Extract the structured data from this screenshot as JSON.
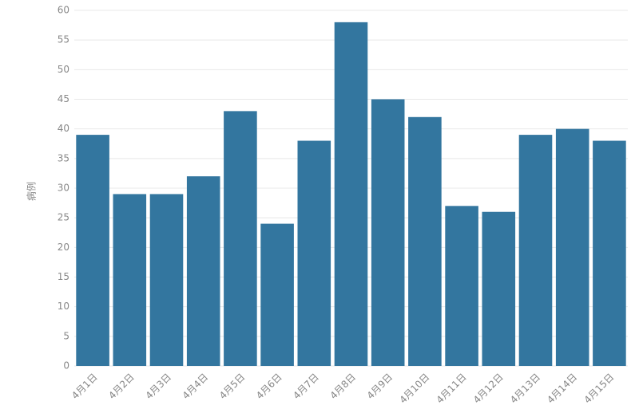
{
  "chart_data": {
    "type": "bar",
    "y_label": "病例",
    "categories": [
      "4月1日",
      "4月2日",
      "4月3日",
      "4月4日",
      "4月5日",
      "4月6日",
      "4月7日",
      "4月8日",
      "4月9日",
      "4月10日",
      "4月11日",
      "4月12日",
      "4月13日",
      "4月14日",
      "4月15日"
    ],
    "values": [
      39,
      29,
      29,
      32,
      43,
      24,
      38,
      58,
      45,
      42,
      27,
      26,
      39,
      40,
      38
    ],
    "color": "#33769f",
    "ylim": [
      0,
      60
    ],
    "yticks": [
      0,
      5,
      10,
      15,
      20,
      25,
      30,
      35,
      40,
      45,
      50,
      55,
      60
    ],
    "grid": true
  }
}
